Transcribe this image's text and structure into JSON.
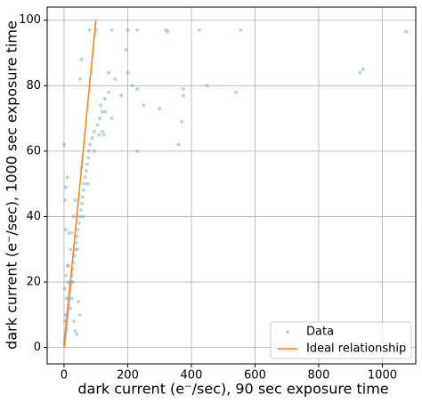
{
  "chart_data": {
    "type": "scatter",
    "xlabel": "dark current (e⁻/sec), 90 sec exposure time",
    "ylabel": "dark current (e⁻/sec), 1000 sec exposure time",
    "xlim": [
      -53,
      1105
    ],
    "ylim": [
      -5,
      104
    ],
    "xticks": [
      0,
      200,
      400,
      600,
      800,
      1000
    ],
    "yticks": [
      0,
      20,
      40,
      60,
      80,
      100
    ],
    "grid": true,
    "legend": "lower right",
    "series": [
      {
        "name": "Data",
        "color": "#1f77b4",
        "x": [
          1,
          2,
          3,
          4,
          6,
          7,
          8,
          9,
          10,
          11,
          12,
          13,
          14,
          15,
          16,
          17,
          18,
          19,
          20,
          22,
          24,
          27,
          30,
          33,
          36,
          38,
          41,
          44,
          47,
          50,
          53,
          56,
          58,
          61,
          64,
          66,
          70,
          73,
          76,
          78,
          82,
          88,
          95,
          105,
          112,
          120,
          115,
          128,
          140,
          5,
          8,
          12,
          15,
          20,
          25,
          30,
          28,
          42,
          60,
          75,
          95,
          110,
          20,
          3,
          10,
          15,
          35,
          55,
          25,
          2,
          6,
          0,
          5,
          10,
          3,
          5,
          50,
          55,
          80,
          100,
          150,
          200,
          230,
          320,
          325,
          425,
          555,
          1075,
          195,
          200,
          215,
          230,
          250,
          300,
          375,
          375,
          370,
          360,
          450,
          540,
          930,
          940,
          140,
          160,
          130,
          150,
          120,
          125,
          180,
          230,
          35,
          40,
          30,
          50,
          45
        ],
        "values": [
          1,
          2,
          3,
          4,
          5,
          6,
          7,
          8,
          9,
          10,
          11,
          12,
          13,
          14,
          15,
          16,
          17,
          18,
          19,
          20,
          22,
          24,
          26,
          28,
          30,
          32,
          34,
          36,
          38,
          40,
          42,
          44,
          46,
          48,
          50,
          52,
          54,
          56,
          58,
          60,
          62,
          64,
          66,
          68,
          70,
          72,
          74,
          76,
          78,
          10,
          15,
          20,
          25,
          30,
          35,
          40,
          20,
          30,
          40,
          50,
          60,
          65,
          12,
          8,
          25,
          35,
          45,
          55,
          15,
          18,
          22,
          62,
          49,
          52,
          45,
          36,
          82,
          88,
          97,
          97,
          97,
          97,
          97,
          97,
          96.5,
          97,
          97,
          96.5,
          91,
          84,
          80,
          79,
          74,
          73,
          79,
          77,
          69,
          62,
          80,
          78,
          84,
          85,
          84,
          82,
          72,
          70,
          66,
          65,
          77,
          60,
          5,
          4,
          8,
          10,
          14
        ]
      },
      {
        "name": "Ideal relationship",
        "type": "line",
        "color": "#ff7f0e",
        "x": [
          0,
          100
        ],
        "values": [
          0,
          100
        ]
      }
    ]
  }
}
